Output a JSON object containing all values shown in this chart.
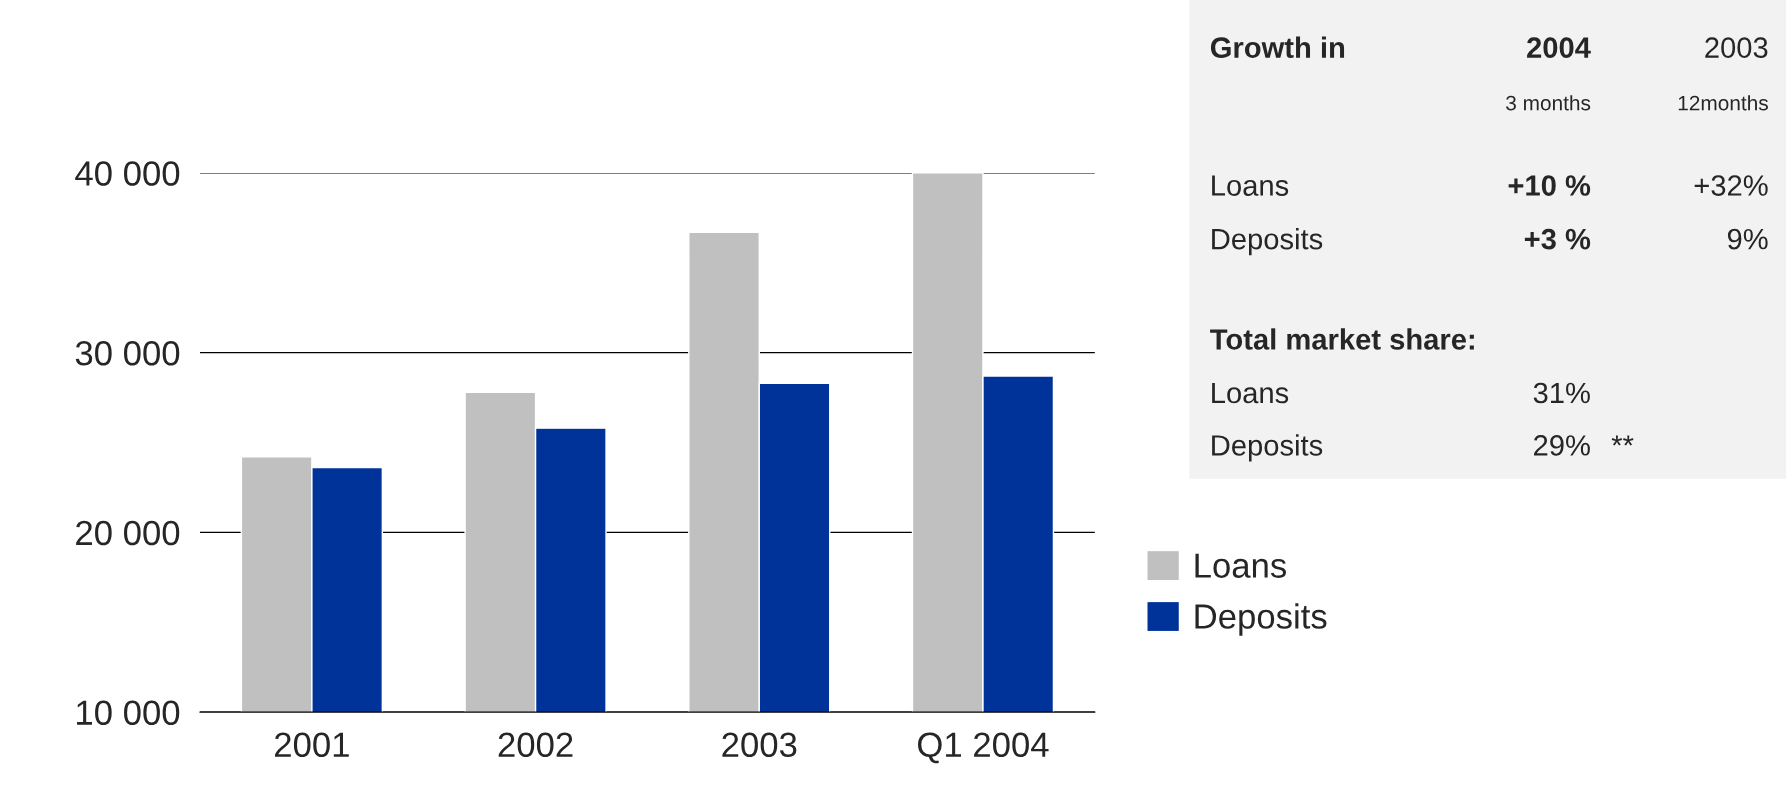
{
  "chart_data": [
    {
      "type": "bar",
      "categories": [
        "2001",
        "2002",
        "2003",
        "Q1 2004"
      ],
      "series": [
        {
          "name": "Loans",
          "color": "#c0c0c0",
          "values": [
            24200,
            27800,
            36700,
            40000
          ]
        },
        {
          "name": "Deposits",
          "color": "#003399",
          "values": [
            23600,
            25800,
            28300,
            28700
          ]
        }
      ],
      "ylim": [
        10000,
        40000
      ],
      "yticks": [
        {
          "value": 10000,
          "label": "10 000"
        },
        {
          "value": 20000,
          "label": "20 000"
        },
        {
          "value": 30000,
          "label": "30 000"
        },
        {
          "value": 40000,
          "label": "40 000"
        }
      ],
      "grid": "y",
      "legend": "right"
    },
    {
      "type": "other",
      "annotations": [
        "Growth in",
        "2004",
        "2003",
        "3 months",
        "12months",
        "Loans",
        "+10 %",
        "+32%",
        "Deposits",
        "+3 %",
        "9%",
        "Total market share:",
        "Loans",
        "31%",
        "Deposits",
        "29%",
        "**"
      ]
    }
  ]
}
